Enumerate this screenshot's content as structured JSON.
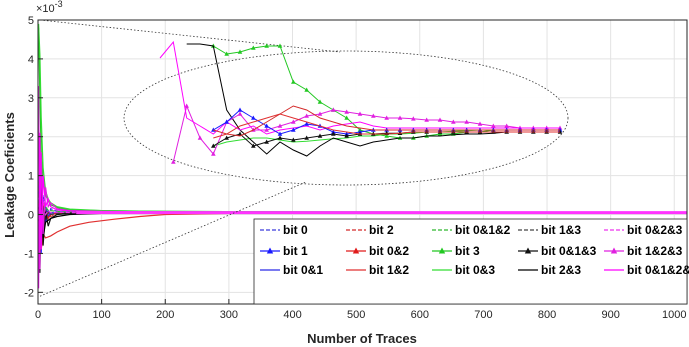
{
  "chart_data": {
    "type": "line",
    "title": "",
    "xlabel": "Number of Traces",
    "ylabel": "Leakage Coeficients",
    "y_exponent_label": "×10",
    "y_exponent": "-3",
    "xlim": [
      0,
      1020
    ],
    "ylim": [
      -2.3,
      5
    ],
    "x_ticks": [
      "0",
      "100",
      "200",
      "300",
      "400",
      "500",
      "600",
      "700",
      "800",
      "900",
      "1000"
    ],
    "y_ticks": [
      "-2",
      "-1",
      "0",
      "1",
      "2",
      "3",
      "4",
      "5"
    ],
    "grid": true,
    "legend_position": "bottom-right",
    "inset_description": "zoomed ellipse view of convergence region",
    "series": [
      {
        "name": "bit 0",
        "color": "#3b3bdc",
        "dash": "dashed",
        "marker": "none",
        "x": [
          1,
          3,
          5,
          8,
          12,
          16,
          20,
          30,
          50,
          100,
          200,
          400,
          700,
          1020
        ],
        "y": [
          0.5,
          1.3,
          -0.6,
          0.5,
          0.1,
          -0.1,
          0.15,
          0.08,
          0.06,
          0.06,
          0.05,
          0.05,
          0.05,
          0.05
        ]
      },
      {
        "name": "bit 1",
        "color": "#1a1aff",
        "dash": "solid",
        "marker": "triangle",
        "x": [
          1,
          3,
          5,
          8,
          12,
          16,
          20,
          30,
          50,
          100,
          200,
          400,
          700,
          1020
        ],
        "y": [
          -0.4,
          0.9,
          -1.0,
          0.4,
          -0.2,
          0.1,
          0.0,
          0.03,
          0.04,
          0.05,
          0.05,
          0.05,
          0.05,
          0.05
        ]
      },
      {
        "name": "bit 0&1",
        "color": "#2b2be6",
        "dash": "solid",
        "marker": "none",
        "x": [
          1,
          3,
          5,
          8,
          12,
          16,
          20,
          30,
          50,
          100,
          200,
          400,
          700,
          1020
        ],
        "y": [
          0.2,
          -0.8,
          0.6,
          -0.3,
          0.2,
          -0.05,
          0.05,
          0.04,
          0.05,
          0.05,
          0.05,
          0.05,
          0.05,
          0.05
        ]
      },
      {
        "name": "bit 2",
        "color": "#d42a2a",
        "dash": "dashed",
        "marker": "none",
        "x": [
          1,
          3,
          5,
          8,
          12,
          16,
          20,
          30,
          50,
          100,
          200,
          400,
          700,
          1020
        ],
        "y": [
          -0.5,
          0.8,
          -0.7,
          0.3,
          -0.1,
          0.05,
          -0.05,
          0.02,
          0.04,
          0.05,
          0.05,
          0.05,
          0.05,
          0.05
        ]
      },
      {
        "name": "bit 0&2",
        "color": "#e01b1b",
        "dash": "solid",
        "marker": "triangle",
        "x": [
          1,
          3,
          5,
          8,
          12,
          16,
          20,
          30,
          50,
          100,
          200,
          400,
          700,
          1020
        ],
        "y": [
          0.3,
          -0.6,
          0.5,
          -0.2,
          0.1,
          -0.1,
          0.0,
          0.03,
          0.04,
          0.05,
          0.05,
          0.05,
          0.05,
          0.05
        ]
      },
      {
        "name": "bit 1&2",
        "color": "#e03030",
        "dash": "solid",
        "marker": "none",
        "x": [
          1,
          3,
          5,
          8,
          12,
          20,
          30,
          50,
          80,
          120,
          160,
          200,
          300,
          1020
        ],
        "y": [
          -0.6,
          0.4,
          -0.9,
          -0.5,
          -0.6,
          -0.55,
          -0.45,
          -0.3,
          -0.2,
          -0.12,
          -0.05,
          0.0,
          0.03,
          0.05
        ]
      },
      {
        "name": "bit 0&1&2",
        "color": "#2fb82f",
        "dash": "dashed",
        "marker": "none",
        "x": [
          1,
          3,
          5,
          8,
          12,
          16,
          20,
          30,
          50,
          100,
          200,
          400,
          700,
          1020
        ],
        "y": [
          1.0,
          -0.8,
          0.7,
          -0.2,
          0.2,
          0.1,
          0.1,
          0.08,
          0.07,
          0.06,
          0.06,
          0.05,
          0.05,
          0.05
        ]
      },
      {
        "name": "bit 3",
        "color": "#22c822",
        "dash": "solid",
        "marker": "triangle",
        "x": [
          1,
          3,
          5,
          8,
          12,
          16,
          20,
          30,
          50,
          100,
          200,
          400,
          700,
          1020
        ],
        "y": [
          4.8,
          3.0,
          1.6,
          0.9,
          0.5,
          0.35,
          0.25,
          0.18,
          0.12,
          0.1,
          0.08,
          0.07,
          0.06,
          0.06
        ]
      },
      {
        "name": "bit 0&3",
        "color": "#33dd33",
        "dash": "solid",
        "marker": "none",
        "x": [
          1,
          3,
          5,
          8,
          12,
          16,
          20,
          30,
          50,
          100,
          200,
          400,
          700,
          1020
        ],
        "y": [
          4.9,
          4.1,
          2.5,
          1.2,
          0.6,
          0.4,
          0.3,
          0.2,
          0.14,
          0.1,
          0.08,
          0.07,
          0.06,
          0.06
        ]
      },
      {
        "name": "bit 1&3",
        "color": "#444444",
        "dash": "dashed",
        "marker": "none",
        "x": [
          1,
          3,
          5,
          8,
          12,
          16,
          20,
          30,
          50,
          100,
          200,
          400,
          700,
          1020
        ],
        "y": [
          -0.3,
          0.6,
          -0.5,
          0.2,
          -0.1,
          0.05,
          0.0,
          0.03,
          0.04,
          0.05,
          0.05,
          0.05,
          0.05,
          0.05
        ]
      },
      {
        "name": "bit 0&1&3",
        "color": "#111111",
        "dash": "solid",
        "marker": "triangle",
        "x": [
          1,
          3,
          5,
          8,
          12,
          16,
          20,
          30,
          50,
          100,
          200,
          400,
          700,
          1020
        ],
        "y": [
          0.2,
          -1.5,
          0.7,
          -0.8,
          0.1,
          -0.3,
          -0.1,
          0.0,
          0.03,
          0.05,
          0.05,
          0.05,
          0.05,
          0.05
        ]
      },
      {
        "name": "bit 2&3",
        "color": "#000000",
        "dash": "solid",
        "marker": "none",
        "x": [
          1,
          3,
          5,
          8,
          12,
          16,
          20,
          30,
          50,
          100,
          200,
          400,
          700,
          1020
        ],
        "y": [
          -0.2,
          -1.1,
          0.4,
          -0.6,
          -0.2,
          -0.15,
          -0.1,
          -0.05,
          0.0,
          0.03,
          0.05,
          0.05,
          0.05,
          0.05
        ]
      },
      {
        "name": "bit 0&2&3",
        "color": "#ee33ee",
        "dash": "dashed",
        "marker": "none",
        "x": [
          1,
          3,
          5,
          8,
          12,
          16,
          20,
          30,
          50,
          100,
          200,
          400,
          700,
          1020
        ],
        "y": [
          -1.2,
          1.0,
          -0.4,
          0.4,
          0.0,
          0.1,
          0.05,
          0.06,
          0.05,
          0.05,
          0.05,
          0.05,
          0.05,
          0.05
        ]
      },
      {
        "name": "bit 1&2&3",
        "color": "#e020e0",
        "dash": "solid",
        "marker": "triangle",
        "x": [
          1,
          3,
          5,
          8,
          12,
          16,
          20,
          30,
          50,
          100,
          200,
          400,
          700,
          1020
        ],
        "y": [
          3.3,
          -1.4,
          1.6,
          -0.5,
          0.7,
          0.2,
          0.3,
          0.15,
          0.1,
          0.08,
          0.07,
          0.06,
          0.06,
          0.06
        ]
      },
      {
        "name": "bit 0&1&2&3",
        "color": "#ff00ff",
        "dash": "solid",
        "marker": "none",
        "x": [
          1,
          3,
          5,
          8,
          12,
          16,
          20,
          30,
          50,
          100,
          200,
          400,
          700,
          1020
        ],
        "y": [
          -1.9,
          2.1,
          -0.9,
          1.0,
          0.2,
          0.4,
          0.2,
          0.12,
          0.09,
          0.07,
          0.06,
          0.06,
          0.06,
          0.06
        ]
      }
    ]
  },
  "inset": {
    "x": [
      200,
      220,
      240,
      260,
      280,
      300,
      320,
      340,
      360,
      380,
      400,
      420,
      440,
      460,
      480,
      500,
      520,
      540,
      560,
      580,
      600,
      620,
      640,
      660,
      680,
      700,
      720,
      740,
      760,
      780,
      800
    ],
    "series": [
      {
        "name": "bit 3",
        "color": "#22c822",
        "marker": "triangle",
        "y": [
          0.0,
          0.0,
          0.0,
          0.0,
          4.1,
          3.9,
          3.95,
          4.05,
          4.1,
          4.1,
          3.2,
          3.0,
          2.7,
          2.5,
          2.3,
          2.0,
          1.9,
          1.85,
          1.8,
          1.8,
          1.85,
          1.9,
          1.9,
          1.95,
          1.95,
          2.0,
          2.0,
          2.0,
          2.0,
          2.0,
          2.0
        ]
      },
      {
        "name": "bit 0&3",
        "color": "#33dd33",
        "marker": "none",
        "y": [
          0.0,
          0.0,
          0.0,
          0.0,
          1.6,
          1.7,
          1.75,
          1.8,
          1.8,
          1.75,
          1.7,
          1.72,
          1.75,
          1.78,
          1.8,
          1.85,
          1.85,
          1.9,
          1.9,
          1.92,
          1.95,
          1.95,
          1.97,
          1.98,
          2.0,
          2.0,
          2.0,
          2.0,
          2.0,
          2.0,
          2.0
        ]
      },
      {
        "name": "bit 2&3",
        "color": "#000000",
        "marker": "none",
        "y": [
          0.0,
          0.0,
          4.15,
          4.15,
          4.1,
          2.5,
          2.0,
          1.7,
          1.4,
          1.7,
          1.5,
          1.35,
          1.6,
          1.8,
          1.7,
          1.6,
          1.7,
          1.75,
          1.8,
          1.8,
          1.85,
          1.85,
          1.88,
          1.9,
          1.9,
          1.92,
          1.95,
          1.95,
          1.95,
          1.95,
          1.95
        ]
      },
      {
        "name": "bit 1&2&3",
        "color": "#e020e0",
        "marker": "triangle",
        "y": [
          0.0,
          1.2,
          2.6,
          1.8,
          1.4,
          2.2,
          2.4,
          2.0,
          2.0,
          2.1,
          2.2,
          2.35,
          2.4,
          2.5,
          2.45,
          2.4,
          2.35,
          2.3,
          2.3,
          2.28,
          2.25,
          2.25,
          2.2,
          2.2,
          2.15,
          2.1,
          2.1,
          2.05,
          2.05,
          2.05,
          2.05
        ]
      },
      {
        "name": "bit 0&1&2&3",
        "color": "#ff00ff",
        "marker": "none",
        "y": [
          3.8,
          4.2,
          2.3,
          2.1,
          1.9,
          2.2,
          2.0,
          2.1,
          1.9,
          2.0,
          2.05,
          2.1,
          2.0,
          2.1,
          2.15,
          2.2,
          2.1,
          2.05,
          2.05,
          2.05,
          2.05,
          2.05,
          2.05,
          2.05,
          2.05,
          2.05,
          2.05,
          2.05,
          2.05,
          2.05,
          2.05
        ]
      },
      {
        "name": "bit 1",
        "color": "#1a1aff",
        "marker": "triangle",
        "y": [
          0.0,
          0.0,
          0.0,
          0.0,
          2.0,
          2.2,
          2.5,
          2.3,
          2.1,
          1.9,
          2.0,
          2.15,
          2.1,
          1.95,
          1.9,
          1.95,
          2.0,
          2.0,
          2.0,
          2.0,
          2.0,
          2.0,
          2.0,
          2.0,
          2.0,
          2.0,
          2.0,
          2.0,
          2.0,
          2.0,
          2.0
        ]
      },
      {
        "name": "bit 0&1&3",
        "color": "#111111",
        "marker": "triangle",
        "y": [
          0.0,
          0.0,
          0.0,
          0.0,
          1.6,
          1.8,
          1.9,
          1.6,
          1.7,
          1.8,
          1.75,
          1.8,
          1.85,
          1.9,
          1.85,
          1.9,
          1.9,
          1.92,
          1.92,
          1.95,
          1.95,
          1.95,
          1.95,
          1.95,
          1.95,
          1.95,
          1.95,
          1.95,
          1.95,
          1.95,
          1.95
        ]
      },
      {
        "name": "bit 1&2",
        "color": "#e03030",
        "marker": "none",
        "y": [
          0.0,
          0.0,
          0.0,
          0.0,
          1.8,
          1.9,
          2.1,
          2.2,
          2.3,
          2.4,
          2.3,
          2.2,
          2.1,
          2.0,
          1.95,
          1.9,
          1.9,
          1.9,
          1.92,
          1.95,
          1.95,
          1.95,
          1.95,
          1.95,
          1.95,
          1.95,
          1.95,
          1.95,
          1.95,
          1.95,
          1.95
        ]
      },
      {
        "name": "bit 2",
        "color": "#d42a2a",
        "marker": "none",
        "y": [
          0.0,
          0.0,
          0.0,
          0.0,
          2.0,
          1.9,
          1.85,
          2.0,
          2.2,
          2.4,
          2.6,
          2.5,
          2.3,
          2.2,
          2.1,
          2.05,
          2.0,
          2.0,
          2.0,
          2.0,
          2.0,
          2.0,
          2.0,
          2.0,
          2.0,
          2.0,
          2.0,
          2.0,
          2.0,
          2.0,
          2.0
        ]
      }
    ]
  }
}
